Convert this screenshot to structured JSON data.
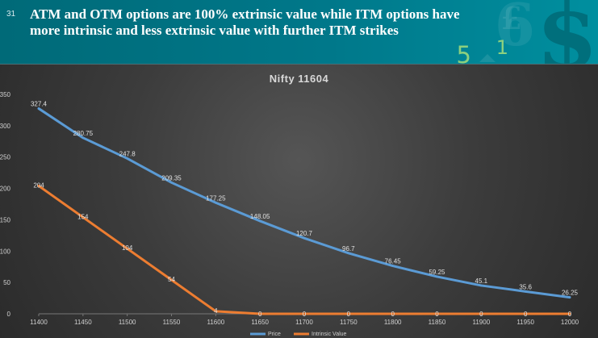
{
  "slide": {
    "number": "31",
    "title": "ATM and OTM options are 100% extrinsic value while ITM options have more intrinsic and less extrinsic value with further ITM strikes",
    "decor": {
      "six": "6",
      "pound": "£",
      "dollar": "$",
      "five": "5",
      "one": "1"
    }
  },
  "chart_data": {
    "type": "line",
    "title": "Nifty 11604",
    "xlabel": "",
    "ylabel": "",
    "categories": [
      "11400",
      "11450",
      "11500",
      "11550",
      "11600",
      "11650",
      "11700",
      "11750",
      "11800",
      "11850",
      "11900",
      "11950",
      "12000"
    ],
    "series": [
      {
        "name": "Price",
        "color": "#5b9bd5",
        "values": [
          327.4,
          280.75,
          247.8,
          209.35,
          177.25,
          148.05,
          120.7,
          96.7,
          76.45,
          59.25,
          45.1,
          35.6,
          26.25
        ],
        "labels": [
          "327.4",
          "280.75",
          "247.8",
          "209.35",
          "177.25",
          "148.05",
          "120.7",
          "96.7",
          "76.45",
          "59.25",
          "45.1",
          "35.6",
          "26.25"
        ]
      },
      {
        "name": "Intrinsic Value",
        "color": "#ed7d31",
        "values": [
          204,
          154,
          104,
          54,
          4,
          0,
          0,
          0,
          0,
          0,
          0,
          0,
          0
        ],
        "labels": [
          "204",
          "154",
          "104",
          "54",
          "4",
          "0",
          "0",
          "0",
          "0",
          "0",
          "0",
          "0",
          "0"
        ]
      }
    ],
    "ylim": [
      0,
      350
    ],
    "yticks": [
      0,
      50,
      100,
      150,
      200,
      250,
      300,
      350
    ],
    "ytick_labels": [
      "0",
      "50",
      "100",
      "150",
      "200",
      "250",
      "300",
      "350"
    ],
    "grid": false,
    "legend_position": "bottom"
  }
}
